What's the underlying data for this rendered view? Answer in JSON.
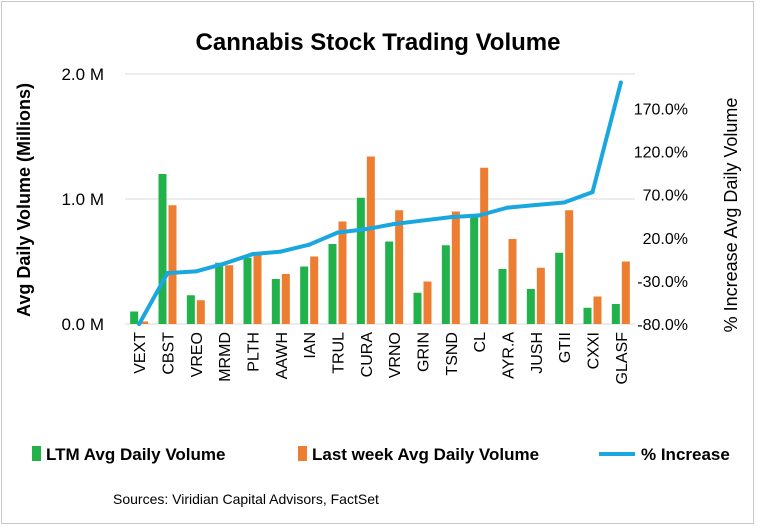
{
  "chart_data": {
    "type": "bar",
    "title": "Cannabis Stock Trading Volume",
    "ylabel": "Avg Daily  Volume (Millions)",
    "y2label": "% Increase Avg Daily Volume",
    "source": "Sources: Viridian Capital Advisors, FactSet",
    "ylim": [
      0,
      2.0
    ],
    "y_ticks": [
      "0.0 M",
      "1.0 M",
      "2.0 M"
    ],
    "y2lim": [
      -80,
      210
    ],
    "y2_ticks": [
      "-80.0%",
      "-30.0%",
      "20.0%",
      "70.0%",
      "120.0%",
      "170.0%"
    ],
    "y2_tick_values": [
      -80,
      -30,
      20,
      70,
      120,
      170
    ],
    "grid": true,
    "legend_position": "bottom",
    "categories": [
      "VEXT",
      "CBST",
      "VREO",
      "MRMD",
      "PLTH",
      "AAWH",
      "IAN",
      "TRUL",
      "CURA",
      "VRNO",
      "GRIN",
      "TSND",
      "CL",
      "AYR.A",
      "JUSH",
      "GTII",
      "CXXI",
      "GLASF"
    ],
    "series": [
      {
        "name": "LTM  Avg Daily Volume",
        "kind": "bar",
        "axis": "left",
        "color": "#21b24b",
        "values": [
          0.1,
          1.2,
          0.23,
          0.49,
          0.53,
          0.36,
          0.46,
          0.64,
          1.01,
          0.66,
          0.25,
          0.63,
          0.87,
          0.44,
          0.28,
          0.57,
          0.13,
          0.16
        ]
      },
      {
        "name": "Last week Avg Daily Volume",
        "kind": "bar",
        "axis": "left",
        "color": "#ed7d31",
        "values": [
          0.02,
          0.95,
          0.19,
          0.47,
          0.56,
          0.4,
          0.54,
          0.82,
          1.34,
          0.91,
          0.34,
          0.9,
          1.25,
          0.68,
          0.45,
          0.91,
          0.22,
          0.5
        ]
      },
      {
        "name": "% Increase",
        "kind": "line",
        "axis": "right",
        "color": "#1aa7e0",
        "values": [
          -80,
          -21,
          -19,
          -10,
          1,
          4,
          12,
          26,
          30,
          36,
          40,
          44,
          46,
          55,
          58,
          61,
          73,
          200
        ]
      }
    ]
  }
}
